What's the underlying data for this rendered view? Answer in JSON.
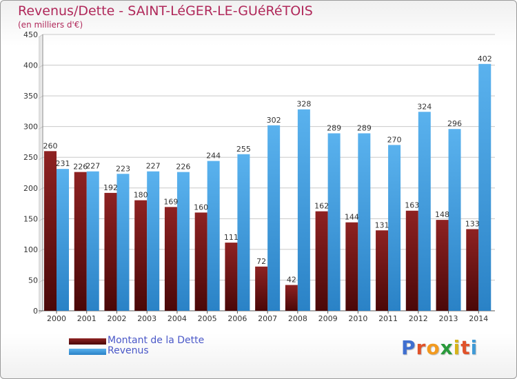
{
  "title": "Revenus/Dette - SAINT-LéGER-LE-GUéRéTOIS",
  "subtitle": "(en milliers d'€)",
  "colors": {
    "title": "#b0285a",
    "legend_text": "#4a58c8",
    "dette": "#7a1a1a",
    "revenus": "#4ea8e8"
  },
  "logo": {
    "letters": [
      "P",
      "r",
      "o",
      "x",
      "i",
      "t",
      "i"
    ],
    "colors": [
      "#3f6fd0",
      "#e0522a",
      "#f29a1f",
      "#2a9a3c",
      "#d6b31a",
      "#e0522a",
      "#3f9ad6"
    ]
  },
  "legend": [
    {
      "label": "Montant de la Dette"
    },
    {
      "label": "Revenus"
    }
  ],
  "chart_data": {
    "type": "bar",
    "title": "Revenus/Dette - SAINT-LéGER-LE-GUéRéTOIS",
    "subtitle": "(en milliers d'€)",
    "categories": [
      "2000",
      "2001",
      "2002",
      "2003",
      "2004",
      "2005",
      "2006",
      "2007",
      "2008",
      "2009",
      "2010",
      "2011",
      "2012",
      "2013",
      "2014"
    ],
    "series": [
      {
        "name": "Montant de la Dette",
        "values": [
          260,
          226,
          192,
          180,
          169,
          160,
          111,
          72,
          42,
          162,
          144,
          131,
          163,
          148,
          133
        ]
      },
      {
        "name": "Revenus",
        "values": [
          231,
          227,
          223,
          227,
          226,
          244,
          255,
          302,
          328,
          289,
          289,
          270,
          324,
          296,
          402
        ]
      }
    ],
    "ylim": [
      0,
      450
    ],
    "yticks": [
      0,
      50,
      100,
      150,
      200,
      250,
      300,
      350,
      400,
      450
    ],
    "grid": true,
    "legend_position": "bottom-left"
  }
}
